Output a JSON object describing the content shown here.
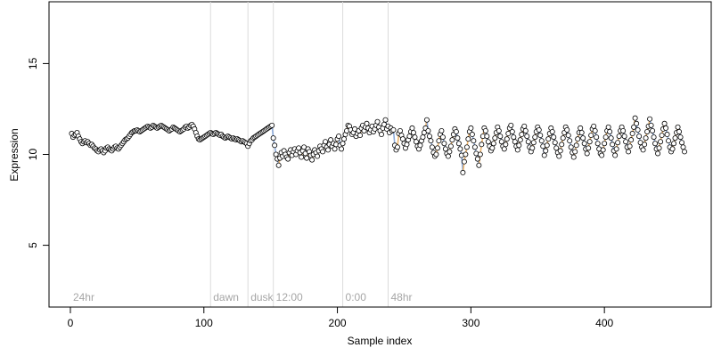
{
  "chart_data": {
    "type": "scatter",
    "xlabel": "Sample index",
    "ylabel": "Expression",
    "xlim": [
      -16,
      480
    ],
    "ylim": [
      1.6,
      18.4
    ],
    "x_ticks": [
      0,
      100,
      200,
      300,
      400
    ],
    "y_ticks": [
      5,
      10,
      15
    ],
    "grid": false,
    "segments": [
      {
        "label": "24hr",
        "start": 0
      },
      {
        "label": "dawn",
        "start": 105
      },
      {
        "label": "dusk",
        "start": 133
      },
      {
        "label": "12:00",
        "start": 152
      },
      {
        "label": "0:00",
        "start": 204
      },
      {
        "label": "48hr",
        "start": 238
      }
    ],
    "segment_boundaries": [
      105,
      133,
      152,
      204,
      238
    ],
    "colors": {
      "up": "#e8a653",
      "down": "#7c9fd6",
      "boundary": "#dcdcdc",
      "segment_label": "#a6a6a6",
      "point_fill": "#ffffff",
      "point_stroke": "#000000"
    },
    "series": [
      {
        "x_start": 1,
        "values": [
          11.15,
          10.95,
          11.05,
          11.1,
          11.2,
          11.0,
          10.85,
          10.7,
          10.6,
          10.7,
          10.75,
          10.65,
          10.7,
          10.6,
          10.5,
          10.55,
          10.45,
          10.35,
          10.3,
          10.2,
          10.15,
          10.25,
          10.3,
          10.2,
          10.1,
          10.2,
          10.35,
          10.4,
          10.3,
          10.25,
          10.2,
          10.3,
          10.4,
          10.45,
          10.35,
          10.3,
          10.4,
          10.5,
          10.6,
          10.7,
          10.8,
          10.85,
          10.9,
          11.0,
          11.1,
          11.2,
          11.25,
          11.3,
          11.3,
          11.35,
          11.3,
          11.25,
          11.3,
          11.35,
          11.4,
          11.45,
          11.5,
          11.55,
          11.5,
          11.45,
          11.5,
          11.6,
          11.55,
          11.5,
          11.45,
          11.5,
          11.55,
          11.6,
          11.55,
          11.5,
          11.45,
          11.4,
          11.35,
          11.3,
          11.35,
          11.4,
          11.5,
          11.45,
          11.4,
          11.35,
          11.3,
          11.25,
          11.3,
          11.35,
          11.4,
          11.5,
          11.55,
          11.45,
          11.5,
          11.6,
          11.65,
          11.55,
          11.4,
          11.2,
          11.0,
          10.85,
          10.8,
          10.85,
          10.9,
          10.95,
          11.0,
          11.05,
          11.1,
          11.15,
          11.2,
          11.15,
          11.1,
          11.15,
          11.2,
          11.15,
          11.1,
          11.05,
          11.1,
          11.0,
          10.95,
          10.9,
          10.95,
          11.0,
          10.95,
          10.9,
          10.85,
          10.9,
          10.85,
          10.8,
          10.85,
          10.8,
          10.75,
          10.7,
          10.75,
          10.7,
          10.65,
          10.6,
          10.45,
          10.6,
          10.75,
          10.8,
          10.9,
          10.95,
          11.0,
          11.05,
          11.1,
          11.15,
          11.2,
          11.25,
          11.3,
          11.35,
          11.4,
          11.45,
          11.5,
          11.55,
          11.6,
          10.9,
          10.5,
          10.0,
          9.75,
          9.4,
          9.8,
          10.1,
          9.9,
          10.2,
          10.0,
          9.85,
          9.75,
          10.1,
          10.25,
          9.95,
          10.15,
          10.3,
          10.0,
          10.2,
          10.35,
          10.1,
          9.85,
          10.2,
          10.4,
          10.05,
          9.8,
          10.3,
          10.15,
          9.95,
          9.7,
          10.0,
          10.25,
          10.1,
          9.9,
          10.2,
          10.45,
          10.3,
          10.15,
          10.5,
          10.7,
          10.4,
          10.25,
          10.55,
          10.8,
          10.45,
          10.6,
          10.3,
          10.55,
          10.85,
          11.0,
          10.5,
          10.3,
          10.6,
          10.85,
          11.1,
          11.3,
          11.6,
          11.55,
          11.35,
          11.1,
          11.2,
          11.4,
          11.0,
          11.15,
          11.3,
          11.05,
          11.45,
          11.6,
          11.3,
          11.5,
          11.7,
          11.45,
          11.2,
          11.35,
          11.55,
          11.25,
          11.4,
          11.6,
          11.8,
          11.5,
          11.3,
          11.1,
          11.45,
          11.65,
          11.9,
          11.4,
          11.55,
          11.2,
          11.45,
          11.3,
          11.35,
          10.5,
          10.25,
          10.4,
          11.15,
          11.3,
          11.05,
          10.85,
          10.6,
          10.35,
          10.55,
          10.8,
          11.0,
          11.25,
          11.45,
          11.2,
          10.95,
          10.7,
          10.45,
          10.3,
          10.5,
          10.75,
          10.95,
          11.2,
          11.45,
          11.9,
          11.3,
          11.0,
          10.75,
          10.4,
          10.1,
          9.9,
          10.0,
          10.35,
          10.75,
          11.1,
          11.3,
          10.95,
          10.6,
          10.3,
          10.05,
          9.9,
          10.15,
          10.45,
          10.8,
          11.1,
          11.4,
          11.25,
          10.9,
          10.6,
          10.3,
          9.95,
          9.0,
          9.6,
          10.0,
          10.4,
          10.85,
          11.25,
          11.45,
          11.1,
          10.75,
          10.4,
          10.05,
          9.75,
          9.4,
          10.0,
          10.55,
          11.0,
          11.45,
          11.3,
          11.0,
          10.7,
          10.45,
          10.2,
          10.35,
          10.6,
          10.9,
          11.2,
          11.5,
          11.3,
          11.0,
          10.7,
          10.45,
          10.3,
          10.55,
          10.85,
          11.15,
          11.45,
          11.6,
          11.25,
          10.95,
          10.7,
          10.45,
          10.25,
          10.5,
          10.8,
          11.1,
          11.4,
          11.55,
          11.3,
          11.0,
          10.7,
          10.4,
          10.15,
          10.35,
          10.65,
          10.95,
          11.25,
          11.5,
          11.35,
          11.05,
          10.75,
          10.45,
          9.95,
          10.2,
          10.5,
          10.85,
          11.15,
          11.45,
          11.25,
          10.95,
          10.65,
          10.35,
          10.1,
          9.9,
          10.2,
          10.55,
          10.9,
          11.2,
          11.5,
          11.35,
          11.05,
          10.75,
          10.4,
          10.1,
          9.85,
          10.15,
          10.5,
          10.85,
          11.2,
          11.45,
          11.2,
          10.9,
          10.6,
          10.3,
          10.05,
          10.35,
          10.7,
          11.05,
          11.4,
          11.55,
          11.3,
          10.95,
          10.6,
          10.3,
          10.05,
          9.95,
          10.25,
          10.6,
          10.95,
          11.3,
          11.5,
          11.25,
          10.9,
          10.55,
          10.2,
          9.95,
          10.3,
          10.65,
          11.0,
          11.3,
          11.5,
          11.3,
          11.0,
          10.7,
          10.4,
          10.15,
          10.45,
          10.8,
          11.15,
          11.5,
          12.0,
          11.7,
          11.35,
          11.0,
          10.65,
          10.4,
          10.25,
          10.55,
          10.9,
          11.25,
          11.55,
          11.95,
          11.6,
          11.3,
          10.95,
          10.6,
          10.3,
          10.05,
          10.35,
          10.7,
          11.05,
          11.4,
          11.7,
          11.45,
          11.1,
          10.75,
          10.4,
          10.15,
          10.3,
          10.6,
          10.9,
          11.2,
          11.5,
          11.25,
          10.95,
          10.65,
          10.4,
          10.15
        ]
      }
    ]
  }
}
